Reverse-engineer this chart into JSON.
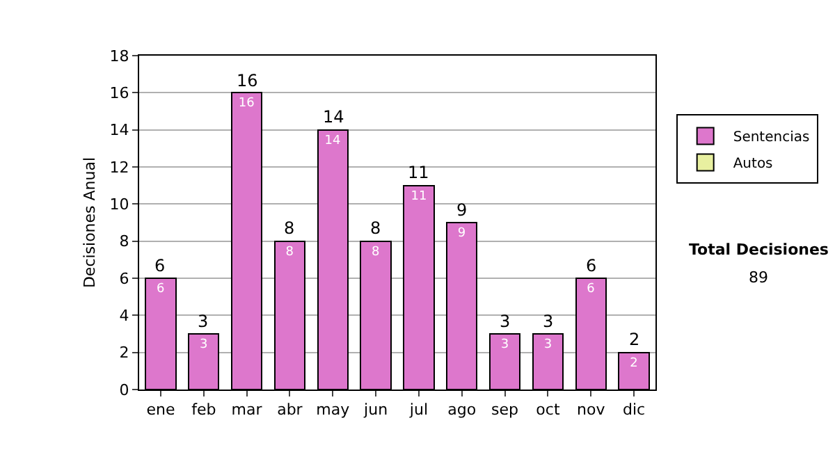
{
  "chart_data": {
    "type": "bar",
    "ylabel": "Decisiones Anual",
    "categories": [
      "ene",
      "feb",
      "mar",
      "abr",
      "may",
      "jun",
      "jul",
      "ago",
      "sep",
      "oct",
      "nov",
      "dic"
    ],
    "series": [
      {
        "name": "Sentencias",
        "color": "#dd77cc",
        "values": [
          6,
          3,
          16,
          8,
          14,
          8,
          11,
          9,
          3,
          3,
          6,
          2
        ],
        "value_labels": [
          "6",
          "3",
          "16",
          "8",
          "14",
          "8",
          "11",
          "9",
          "3",
          "3",
          "6",
          "2"
        ]
      },
      {
        "name": "Autos",
        "color": "#e8f0a0",
        "values": [
          null,
          null,
          null,
          null,
          null,
          null,
          null,
          null,
          null,
          null,
          null,
          null
        ]
      }
    ],
    "stacked": true,
    "totals": [
      "6",
      "3",
      "16",
      "8",
      "14",
      "8",
      "11",
      "9",
      "3",
      "3",
      "6",
      "2"
    ],
    "ylim": [
      0,
      18
    ],
    "yticks": [
      0,
      2,
      4,
      6,
      8,
      10,
      12,
      14,
      16,
      18
    ],
    "grid": "y",
    "legend": "right",
    "annotations": [
      "Total Decisiones",
      "89"
    ]
  }
}
